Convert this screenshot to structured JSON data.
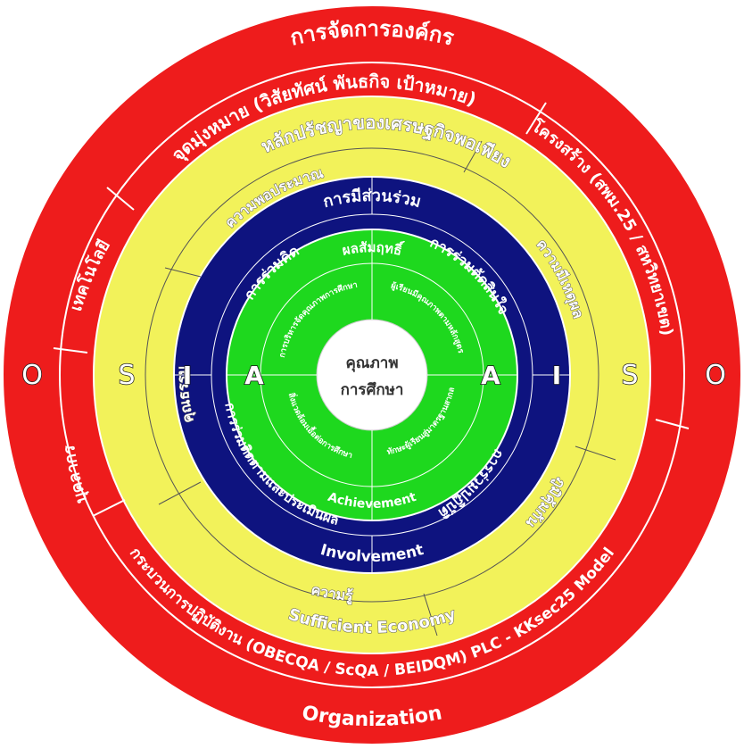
{
  "colors": {
    "red": "#ee1c1c",
    "yellow": "#f2f25a",
    "navy": "#0e137f",
    "green": "#1ed81e",
    "center": "#ffffff"
  },
  "ring_organization": {
    "top": "การจัดการองค์กร",
    "bottom": "Organization",
    "left_letter": "O",
    "right_letter": "O",
    "segments": [
      "จุดมุ่งหมาย (วิสัยทัศน์ พันธกิจ เป้าหมาย)",
      "โครงสร้าง (สพม.25 / สหวิทยาเขต)",
      "กระบวนการปฏิบัติงาน (OBECQA / ScQA / BEIDQM) PLC - KKsec25 Model",
      "บุคลากร",
      "เทคโนโลยี"
    ]
  },
  "ring_sufficiency": {
    "top": "หลักปรัชญาของเศรษฐกิจพอเพียง",
    "bottom": "Sufficient Economy",
    "left_letter": "S",
    "right_letter": "S",
    "segments": [
      "ความพอประมาณ",
      "ความมีเหตุผล",
      "ภูมิคุ้มกัน",
      "ความรู้",
      "คุณธรรม"
    ]
  },
  "ring_involvement": {
    "top": "การมีส่วนร่วม",
    "bottom": "Involvement",
    "left_letter": "I",
    "right_letter": "I",
    "segments": [
      "การร่วมคิด",
      "การร่วมตัดสินใจ",
      "การร่วมปฏิบัติ",
      "การร่วมติดตามและประเมินผล"
    ]
  },
  "ring_achievement": {
    "top": "ผลสัมฤทธิ์",
    "bottom": "Achievement",
    "left_letter": "A",
    "right_letter": "A",
    "segments": [
      "การบริหารจัดคุณภาพการศึกษา",
      "ผู้เรียนมีคุณภาพตามหลักสูตร",
      "ทักษะผู้เรียนสู่มาตรฐานสากล",
      "สิ่งแวดล้อมเอื้อต่อการศึกษา"
    ]
  },
  "center": {
    "line1": "คุณภาพ",
    "line2": "การศึกษา"
  }
}
